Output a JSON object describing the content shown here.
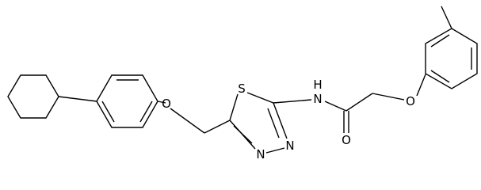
{
  "atoms": [
    {
      "label": "O"
    },
    {
      "label": "S"
    },
    {
      "label": "H"
    },
    {
      "label": "N"
    },
    {
      "label": "N"
    },
    {
      "label": "N"
    },
    {
      "label": "O"
    },
    {
      "label": "O"
    }
  ]
}
